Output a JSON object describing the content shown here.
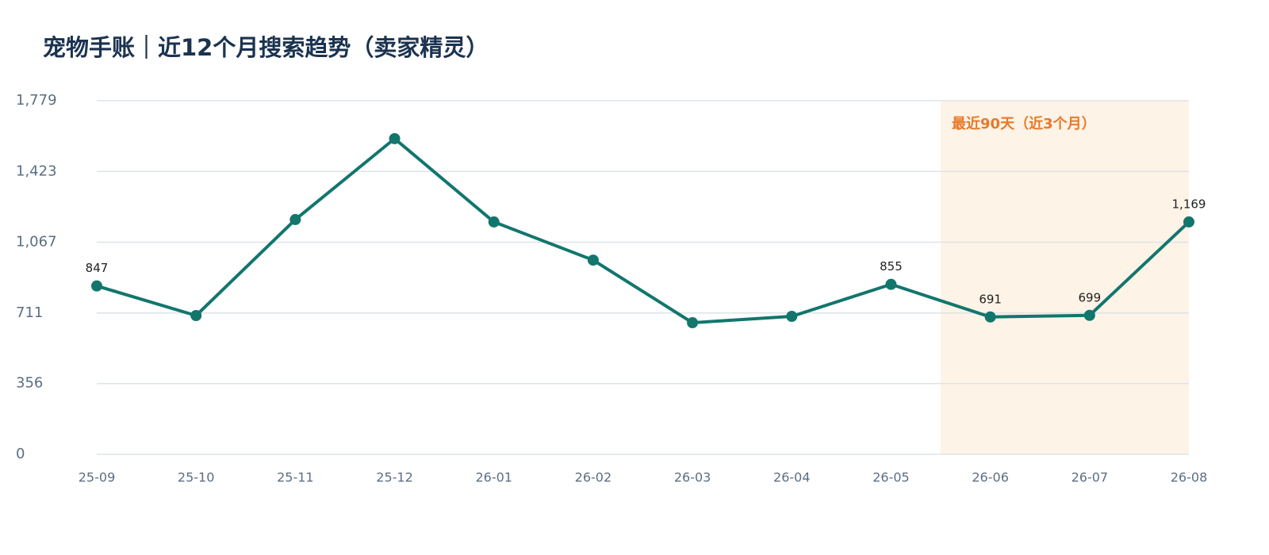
{
  "chart_data": {
    "type": "line",
    "title": "宠物手账｜近12个月搜索趋势（卖家精灵）",
    "categories": [
      "25-09",
      "25-10",
      "25-11",
      "25-12",
      "26-01",
      "26-02",
      "26-03",
      "26-04",
      "26-05",
      "26-06",
      "26-07",
      "26-08"
    ],
    "values": [
      847,
      698,
      1181,
      1588,
      1169,
      977,
      662,
      694,
      855,
      691,
      699,
      1169
    ],
    "value_labels": [
      "847",
      null,
      null,
      null,
      null,
      null,
      null,
      null,
      "855",
      "691",
      "699",
      "1,169"
    ],
    "color": "#12766d",
    "ylim": [
      0,
      1779
    ],
    "yticks": [
      0,
      356,
      711,
      {
        "value": 1067,
        "label": "1,067"
      },
      {
        "value": 1423,
        "label": "1,423"
      },
      {
        "value": 1779,
        "label": "1,779"
      }
    ],
    "grid": true,
    "annotation": "最近90天（近3个月）"
  }
}
